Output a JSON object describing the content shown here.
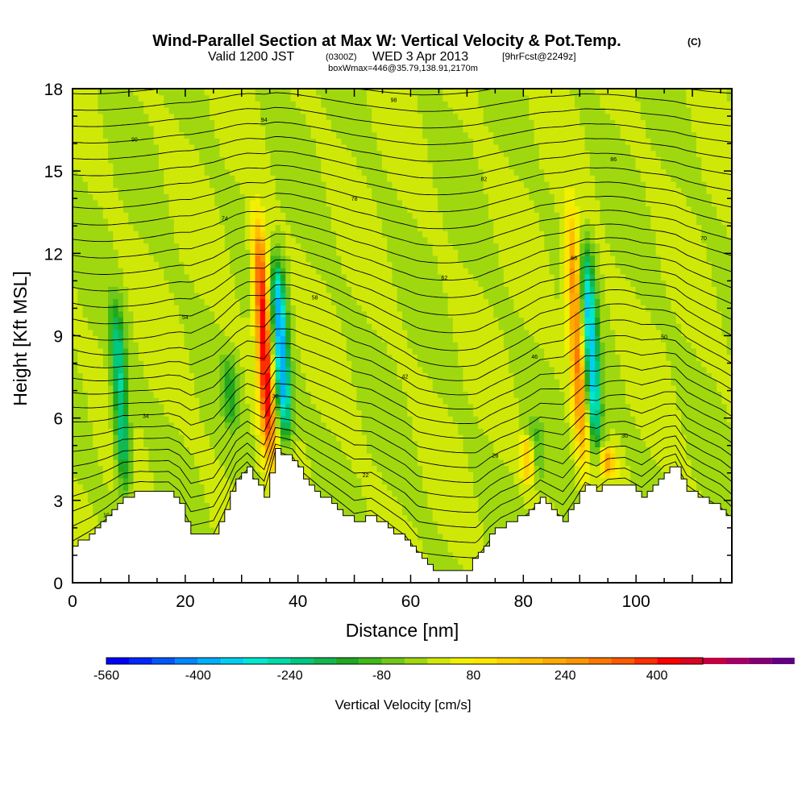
{
  "chart_data": {
    "type": "heatmap",
    "title": "Wind-Parallel Section at Max W: Vertical Velocity & Pot.Temp.",
    "title_mark": "(C)",
    "subtitle_main": "Valid 1200 JST",
    "subtitle_utc": "(0300Z)",
    "subtitle_date": "WED 3 Apr 2013",
    "subtitle_forecast": "[9hrFcst@2249z]",
    "subtitle_box": "boxWmax=446@35.79,138.91,2170m",
    "xlabel": "Distance [nm]",
    "ylabel": "Height [Kft MSL]",
    "xlim": [
      0,
      117
    ],
    "ylim": [
      0,
      18
    ],
    "x_ticks": [
      0,
      20,
      40,
      60,
      80,
      100
    ],
    "x_tick_labels": [
      "0",
      "20",
      "40",
      "60",
      "80",
      "100"
    ],
    "y_ticks": [
      0,
      3,
      6,
      9,
      12,
      15,
      18
    ],
    "y_tick_labels": [
      "0",
      "3",
      "6",
      "9",
      "12",
      "15",
      "18"
    ],
    "colorbar": {
      "title": "Vertical Velocity [cm/s]",
      "range": [
        -560,
        480
      ],
      "step": 40,
      "tick_values": [
        -560,
        -400,
        -240,
        -80,
        80,
        240,
        400
      ],
      "tick_labels": [
        "-560",
        "-400",
        "-240",
        "-80",
        "80",
        "240",
        "400"
      ],
      "colors": [
        "#0000ff",
        "#0028ff",
        "#0058ff",
        "#0088ff",
        "#00b0ff",
        "#00d0f0",
        "#00e8d0",
        "#00dca8",
        "#00c880",
        "#10b850",
        "#20a820",
        "#40b818",
        "#70c818",
        "#a0d810",
        "#d0e808",
        "#f0f000",
        "#ffe600",
        "#ffd200",
        "#ffbe00",
        "#ffaa00",
        "#ff9600",
        "#ff7800",
        "#ff5a00",
        "#ff3000",
        "#ff0000",
        "#e00020",
        "#c00040",
        "#a00060",
        "#800070",
        "#600080"
      ]
    },
    "terrain_kft": [
      [
        0,
        1.3
      ],
      [
        3,
        1.8
      ],
      [
        6,
        2.4
      ],
      [
        9,
        3.1
      ],
      [
        12,
        3.3
      ],
      [
        17,
        3.3
      ],
      [
        19,
        2.8
      ],
      [
        21,
        1.7
      ],
      [
        25,
        1.8
      ],
      [
        27,
        2.7
      ],
      [
        29,
        3.8
      ],
      [
        31,
        4.2
      ],
      [
        33,
        3.5
      ],
      [
        34,
        3.2
      ],
      [
        36,
        4.8
      ],
      [
        39,
        4.5
      ],
      [
        41,
        3.8
      ],
      [
        44,
        3.2
      ],
      [
        47,
        2.7
      ],
      [
        50,
        2.2
      ],
      [
        53,
        2.4
      ],
      [
        56,
        2.0
      ],
      [
        59,
        1.6
      ],
      [
        62,
        0.8
      ],
      [
        64,
        0.5
      ],
      [
        67,
        0.5
      ],
      [
        70,
        0.5
      ],
      [
        72,
        1.1
      ],
      [
        74,
        1.7
      ],
      [
        76,
        2.1
      ],
      [
        79,
        2.4
      ],
      [
        81,
        2.7
      ],
      [
        83,
        3.1
      ],
      [
        85,
        2.7
      ],
      [
        87,
        2.3
      ],
      [
        89,
        2.9
      ],
      [
        91,
        3.6
      ],
      [
        93,
        3.3
      ],
      [
        95,
        3.6
      ],
      [
        98,
        3.6
      ],
      [
        101,
        3.2
      ],
      [
        103,
        3.6
      ],
      [
        105,
        4.1
      ],
      [
        107,
        4.3
      ],
      [
        109,
        3.4
      ],
      [
        112,
        3.0
      ],
      [
        115,
        2.7
      ],
      [
        117,
        2.3
      ]
    ],
    "updraft_cores": [
      {
        "x": 34.0,
        "y_bottom": 4.0,
        "y_top": 13.5,
        "peak": 446
      },
      {
        "x": 89.5,
        "y_bottom": 4.0,
        "y_top": 13.8,
        "peak": 300
      },
      {
        "x": 81.0,
        "y_bottom": 3.5,
        "y_top": 5.5,
        "peak": 200
      },
      {
        "x": 95.0,
        "y_bottom": 3.8,
        "y_top": 5.0,
        "peak": 200
      }
    ],
    "downdraft_cores": [
      {
        "x": 8.5,
        "y_bottom": 3.0,
        "y_top": 10.5,
        "peak": -250
      },
      {
        "x": 37.0,
        "y_bottom": 5.0,
        "y_top": 12.0,
        "peak": -400
      },
      {
        "x": 92.0,
        "y_bottom": 4.5,
        "y_top": 12.5,
        "peak": -350
      },
      {
        "x": 28.0,
        "y_bottom": 5.5,
        "y_top": 8.5,
        "peak": -120
      },
      {
        "x": 82.0,
        "y_bottom": 3.5,
        "y_top": 6.0,
        "peak": -120
      }
    ],
    "isentrope_labels": [
      "10",
      "18",
      "22",
      "26",
      "30",
      "34",
      "38",
      "42",
      "46",
      "50",
      "54",
      "58",
      "62",
      "66",
      "70",
      "74",
      "78",
      "82",
      "86",
      "90",
      "94",
      "98"
    ]
  }
}
